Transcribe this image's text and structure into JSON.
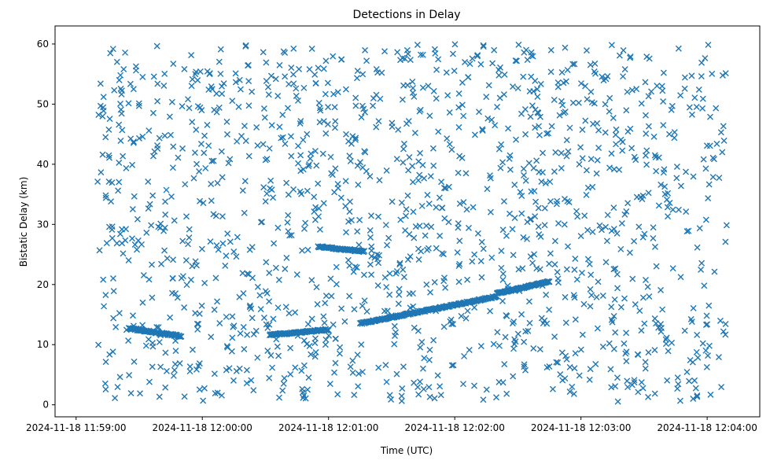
{
  "chart_data": {
    "type": "scatter",
    "title": "Detections in Delay",
    "xlabel": "Time (UTC)",
    "ylabel": "Bistatic Delay (km)",
    "marker": "x",
    "color": "#1f77b4",
    "grid": false,
    "legend": "none",
    "x_ticks": [
      "2024-11-18 11:59:00",
      "2024-11-18 12:00:00",
      "2024-11-18 12:01:00",
      "2024-11-18 12:02:00",
      "2024-11-18 12:03:00",
      "2024-11-18 12:04:00"
    ],
    "y_ticks": [
      "0",
      "10",
      "20",
      "30",
      "40",
      "50",
      "60"
    ],
    "xlim": [
      "2024-11-18 11:58:50",
      "2024-11-18 12:04:25"
    ],
    "ylim": [
      -2,
      63
    ],
    "x_start": "2024-11-18 11:59:10",
    "x_end": "2024-11-18 12:04:10",
    "n_clutter": 1400,
    "y_clutter_range": [
      0.5,
      60
    ],
    "tracks": [
      {
        "x_range": [
          "2024-11-18 11:59:25",
          "2024-11-18 11:59:50"
        ],
        "y_range": [
          12.7,
          11.4
        ]
      },
      {
        "x_range": [
          "2024-11-18 12:00:32",
          "2024-11-18 12:01:00"
        ],
        "y_range": [
          11.6,
          12.5
        ]
      },
      {
        "x_range": [
          "2024-11-18 12:01:15",
          "2024-11-18 12:02:20"
        ],
        "y_range": [
          13.5,
          18.0
        ]
      },
      {
        "x_range": [
          "2024-11-18 12:02:20",
          "2024-11-18 12:02:45"
        ],
        "y_range": [
          18.5,
          20.5
        ]
      },
      {
        "x_range": [
          "2024-11-18 12:00:55",
          "2024-11-18 12:01:17"
        ],
        "y_range": [
          26.3,
          25.5
        ]
      }
    ]
  }
}
